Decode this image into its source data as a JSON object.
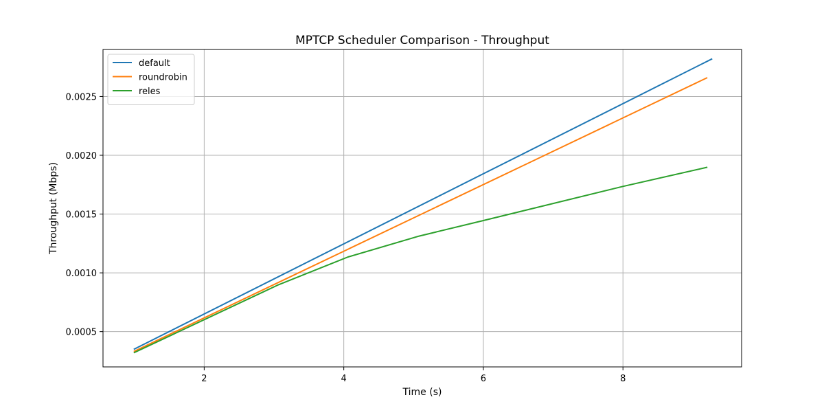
{
  "chart_data": {
    "type": "line",
    "title": "MPTCP Scheduler Comparison - Throughput",
    "xlabel": "Time (s)",
    "ylabel": "Throughput (Mbps)",
    "xlim": [
      0.55,
      9.7
    ],
    "ylim": [
      0.0002,
      0.0029
    ],
    "x_ticks": [
      2,
      4,
      6,
      8
    ],
    "x_tick_labels": [
      "2",
      "4",
      "6",
      "8"
    ],
    "y_ticks": [
      0.0005,
      0.001,
      0.0015,
      0.002,
      0.0025
    ],
    "y_tick_labels": [
      "0.0005",
      "0.0010",
      "0.0015",
      "0.0020",
      "0.0025"
    ],
    "grid": true,
    "legend_position": "top-left",
    "series": [
      {
        "name": "default",
        "color": "#1f77b4",
        "x": [
          1.0,
          9.27
        ],
        "values": [
          0.000352,
          0.002818
        ]
      },
      {
        "name": "roundrobin",
        "color": "#ff7f0e",
        "x": [
          1.0,
          9.2
        ],
        "values": [
          0.000333,
          0.002658
        ]
      },
      {
        "name": "reles",
        "color": "#2ca02c",
        "x": [
          1.0,
          3.05,
          4.06,
          5.08,
          6.0,
          8.0,
          9.2
        ],
        "values": [
          0.000322,
          0.000895,
          0.001135,
          0.001313,
          0.001445,
          0.001735,
          0.001897
        ]
      }
    ]
  }
}
